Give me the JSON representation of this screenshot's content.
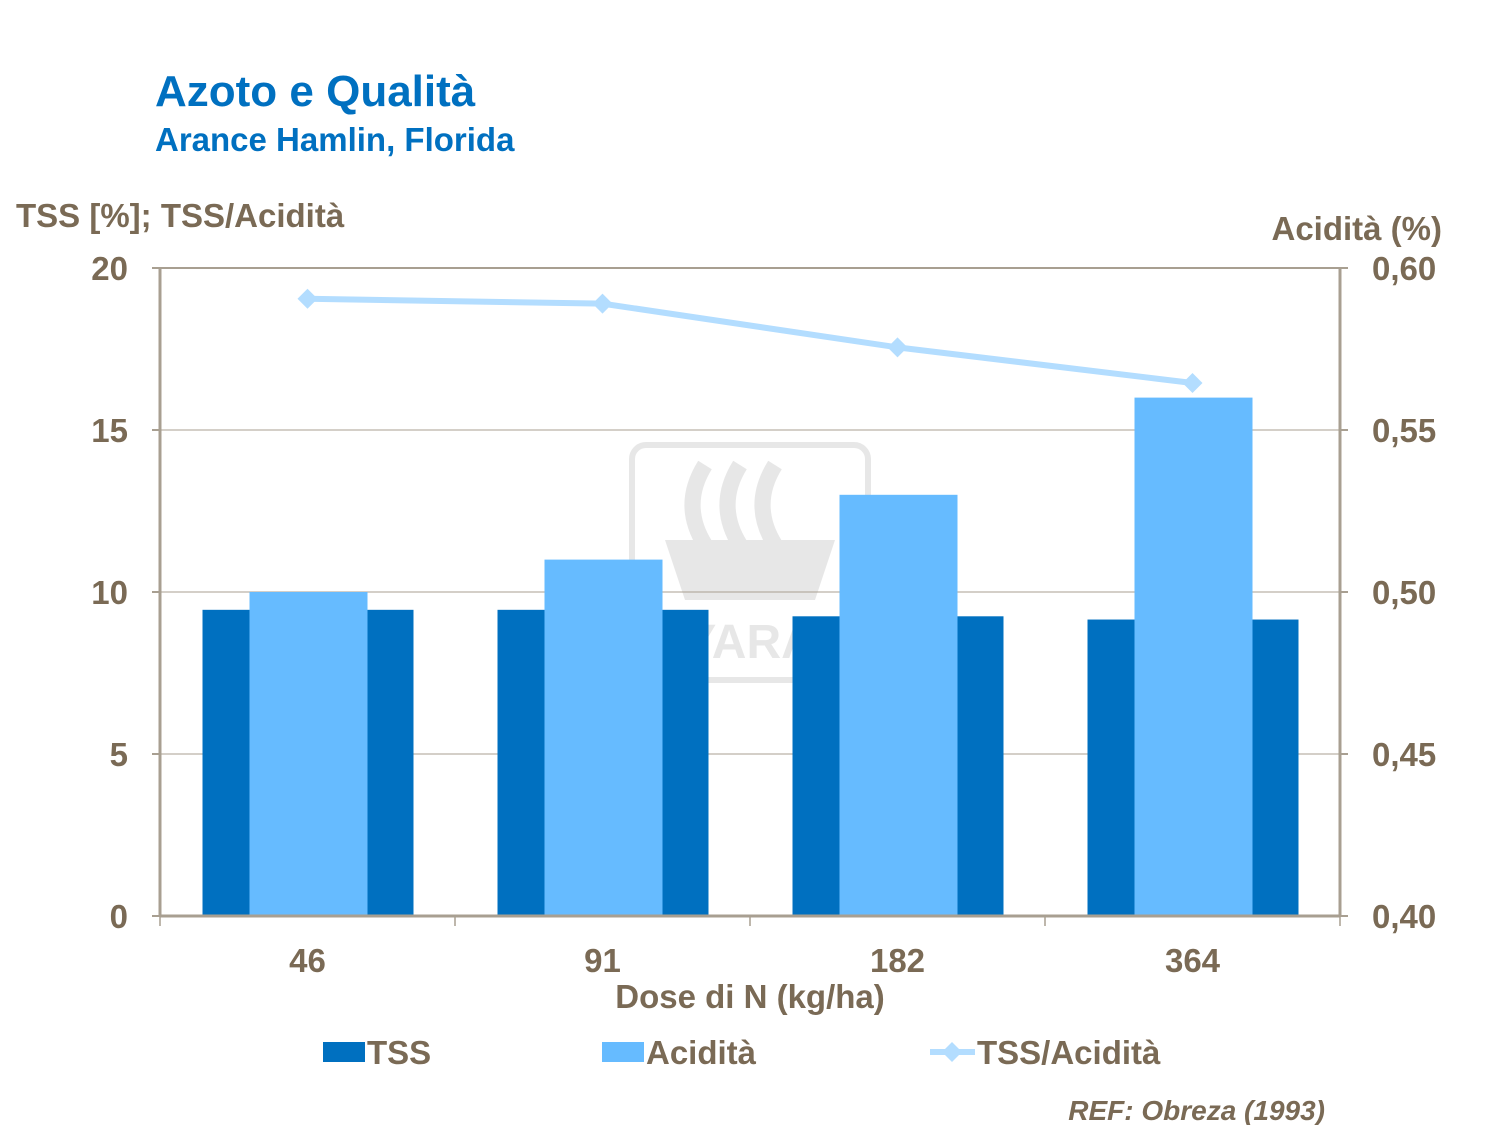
{
  "title": "Azoto e Qualità",
  "subtitle": "Arance Hamlin, Florida",
  "reference": "REF: Obreza (1993)",
  "watermark_logo_text": "YARA",
  "colors": {
    "title": "#0070C0",
    "text": "#7A6A55",
    "tss": "#0070C0",
    "acidita": "#66BBFF",
    "ratio": "#B3DDFF",
    "axis": "#A89F91",
    "grid": "#A89F91"
  },
  "chart_data": {
    "type": "bar",
    "categories": [
      "46",
      "91",
      "182",
      "364"
    ],
    "xlabel": "Dose di N (kg/ha)",
    "ylabel": "TSS [%]; TSS/Acidità",
    "y2label": "Acidità (%)",
    "ylim": [
      0,
      20
    ],
    "y2lim": [
      0.4,
      0.6
    ],
    "yticks": [
      "0",
      "5",
      "10",
      "15",
      "20"
    ],
    "y2ticks": [
      "0,40",
      "0,45",
      "0,50",
      "0,55",
      "0,60"
    ],
    "grid": true,
    "legend": "bottom",
    "series": [
      {
        "name": "TSS",
        "type": "bar",
        "axis": "left",
        "values": [
          9.45,
          9.45,
          9.25,
          9.15
        ]
      },
      {
        "name": "Acidità",
        "type": "bar",
        "axis": "right",
        "values": [
          0.5,
          0.51,
          0.53,
          0.56
        ]
      },
      {
        "name": "TSS/Acidità",
        "type": "line",
        "axis": "left",
        "marker": "diamond",
        "values": [
          19.05,
          18.9,
          17.55,
          16.45
        ]
      }
    ]
  }
}
